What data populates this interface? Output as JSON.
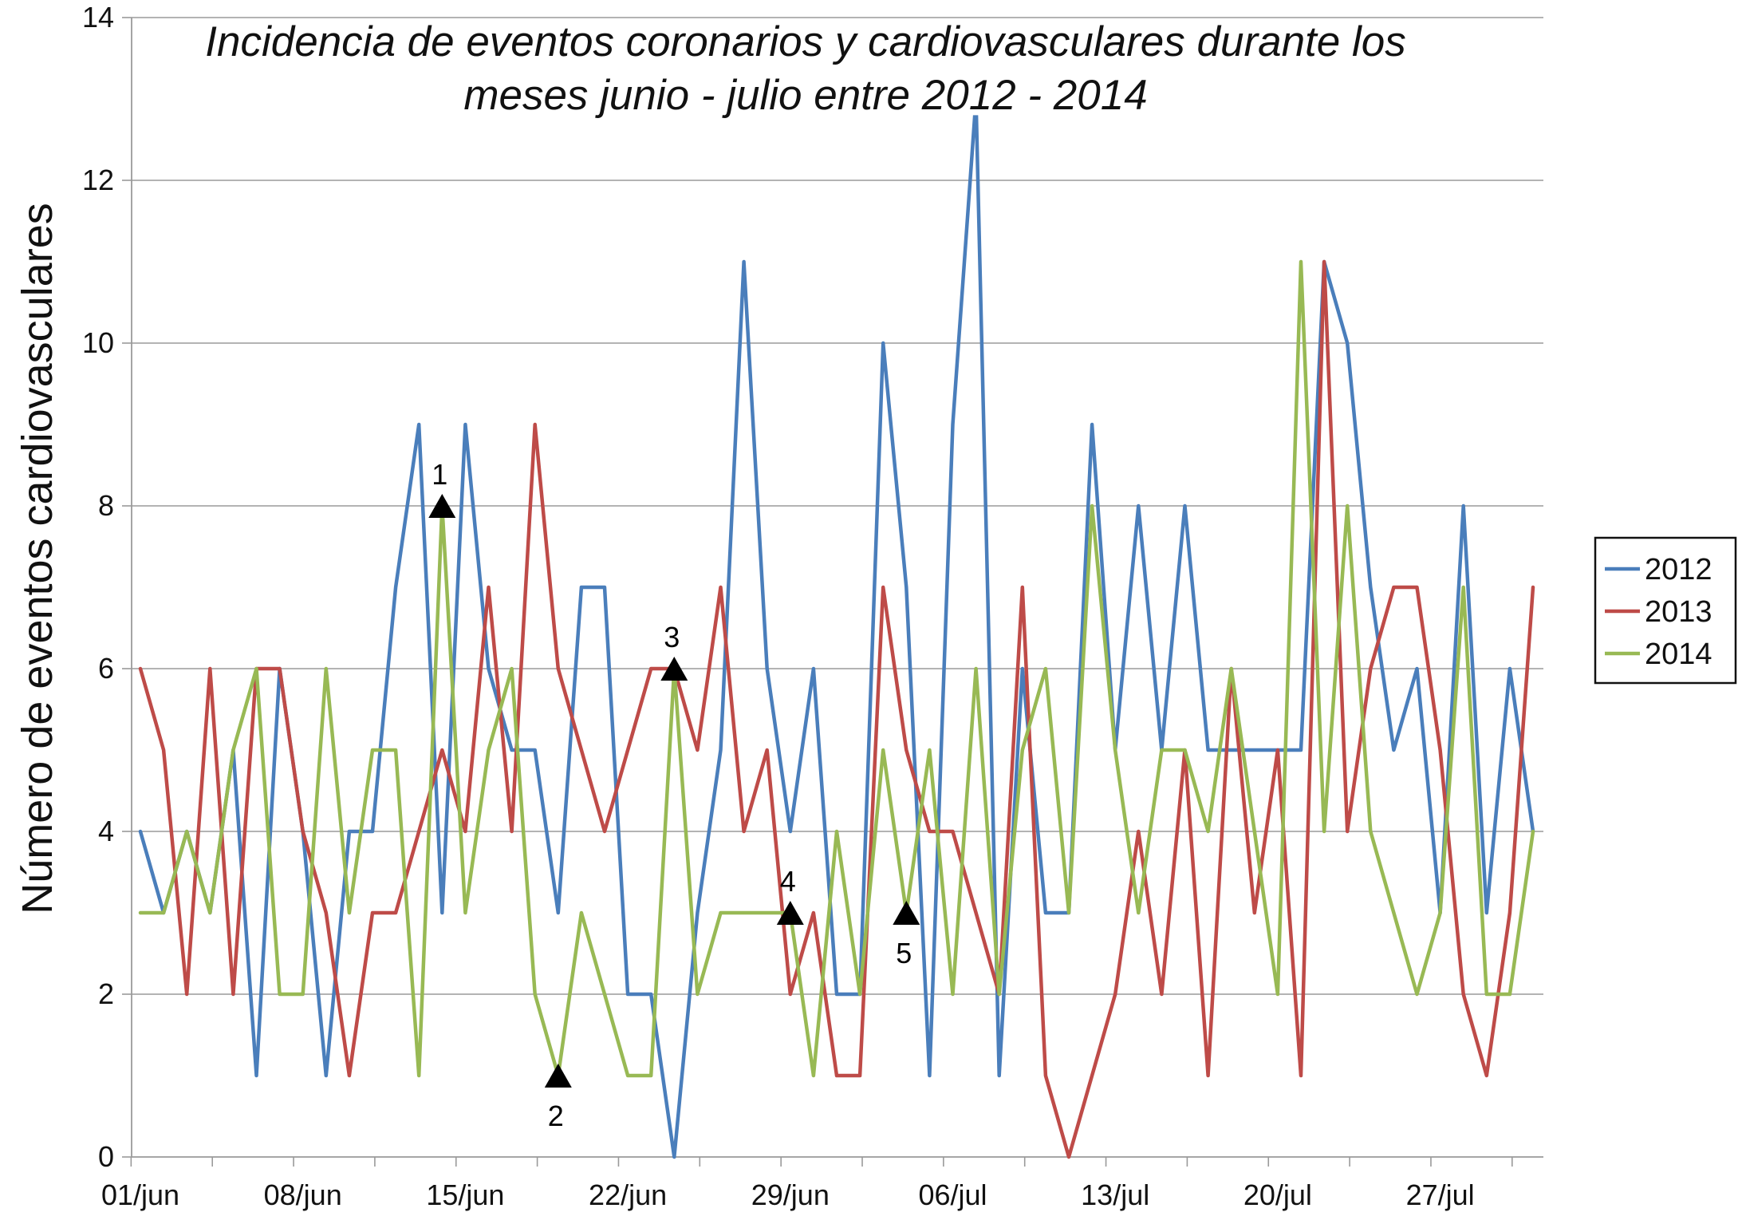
{
  "chart_data": {
    "type": "line",
    "title_lines": [
      "Incidencia de eventos coronarios y cardiovasculares durante los",
      "meses junio - julio entre 2012 - 2014"
    ],
    "ylabel": "Número de eventos cardiovasculares",
    "xlabel": "",
    "ylim": [
      0,
      14
    ],
    "y_ticks": [
      "0",
      "2",
      "4",
      "6",
      "8",
      "10",
      "12",
      "14"
    ],
    "x_ticks": [
      "01/jun",
      "08/jun",
      "15/jun",
      "22/jun",
      "29/jun",
      "06/jul",
      "13/jul",
      "20/jul",
      "27/jul"
    ],
    "x_tick_days": [
      0,
      7,
      14,
      21,
      28,
      35,
      42,
      49,
      56
    ],
    "x_days_total": 60,
    "grid": "horizontal",
    "legend_position": "right",
    "series": [
      {
        "name": "2012",
        "color": "#4a7ebb",
        "values": [
          4,
          3,
          4,
          3,
          5,
          1,
          6,
          4,
          1,
          4,
          4,
          7,
          9,
          3,
          9,
          6,
          5,
          5,
          3,
          7,
          7,
          2,
          2,
          0,
          3,
          5,
          11,
          6,
          4,
          6,
          2,
          2,
          10,
          7,
          1,
          9,
          13,
          1,
          6,
          3,
          3,
          9,
          5,
          8,
          5,
          8,
          5,
          5,
          5,
          5,
          5,
          11,
          10,
          7,
          5,
          6,
          3,
          8,
          3,
          6,
          4
        ]
      },
      {
        "name": "2013",
        "color": "#be4b48",
        "values": [
          6,
          5,
          2,
          6,
          2,
          6,
          6,
          4,
          3,
          1,
          3,
          3,
          4,
          5,
          4,
          7,
          4,
          9,
          6,
          5,
          4,
          5,
          6,
          6,
          5,
          7,
          4,
          5,
          2,
          3,
          1,
          1,
          7,
          5,
          4,
          4,
          3,
          2,
          7,
          1,
          0,
          1,
          2,
          4,
          2,
          5,
          1,
          6,
          3,
          5,
          1,
          11,
          4,
          6,
          7,
          7,
          5,
          2,
          1,
          3,
          7
        ]
      },
      {
        "name": "2014",
        "color": "#98b954",
        "values": [
          3,
          3,
          4,
          3,
          5,
          6,
          2,
          2,
          6,
          3,
          5,
          5,
          1,
          8,
          3,
          5,
          6,
          2,
          1,
          3,
          2,
          1,
          1,
          6,
          2,
          3,
          3,
          3,
          3,
          1,
          4,
          2,
          5,
          3,
          5,
          2,
          6,
          2,
          5,
          6,
          3,
          8,
          5,
          3,
          5,
          5,
          4,
          6,
          4,
          2,
          11,
          4,
          8,
          4,
          3,
          2,
          3,
          7,
          2,
          2,
          4
        ]
      }
    ],
    "annotations": [
      {
        "label": "1",
        "day": 13,
        "value": 8,
        "label_pos": "above"
      },
      {
        "label": "2",
        "day": 18,
        "value": 1,
        "label_pos": "below"
      },
      {
        "label": "3",
        "day": 23,
        "value": 6,
        "label_pos": "above"
      },
      {
        "label": "4",
        "day": 28,
        "value": 3,
        "label_pos": "above"
      },
      {
        "label": "5",
        "day": 33,
        "value": 3,
        "label_pos": "below"
      }
    ],
    "marker_color": "#000000"
  }
}
